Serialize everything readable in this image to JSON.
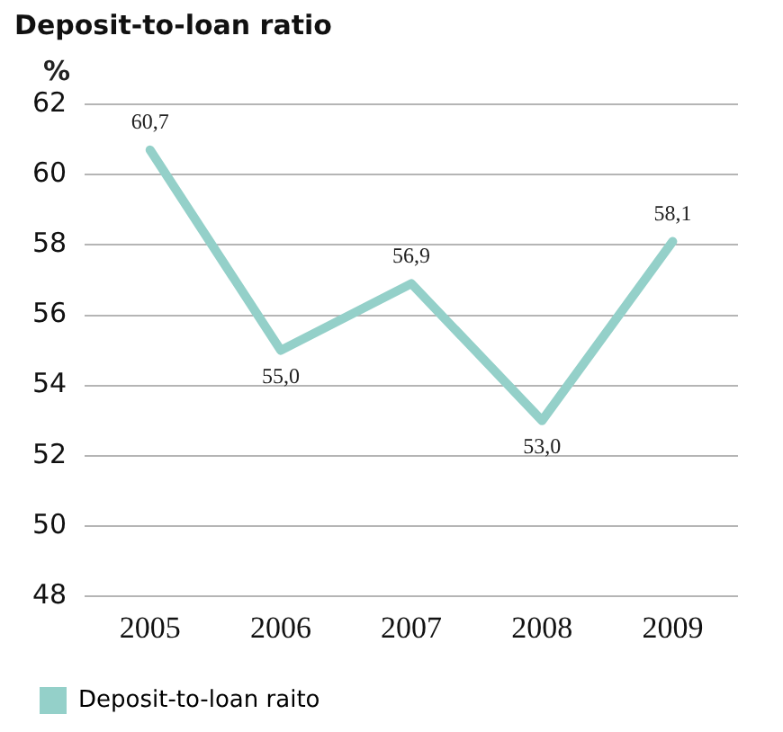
{
  "chart_data": {
    "type": "line",
    "title": "Deposit-to-loan ratio",
    "ylabel": "%",
    "categories": [
      "2005",
      "2006",
      "2007",
      "2008",
      "2009"
    ],
    "series": [
      {
        "name": "Deposit-to-loan raito",
        "color": "#94d0c9",
        "values": [
          60.7,
          55.0,
          56.9,
          53.0,
          58.1
        ],
        "value_labels": [
          "60,7",
          "55,0",
          "56,9",
          "53,0",
          "58,1"
        ]
      }
    ],
    "ylim": [
      48,
      62
    ],
    "yticks": [
      48,
      50,
      52,
      54,
      56,
      58,
      60,
      62
    ],
    "grid": "y",
    "legend": "bottom",
    "marker": "none",
    "line_style": "solid"
  }
}
